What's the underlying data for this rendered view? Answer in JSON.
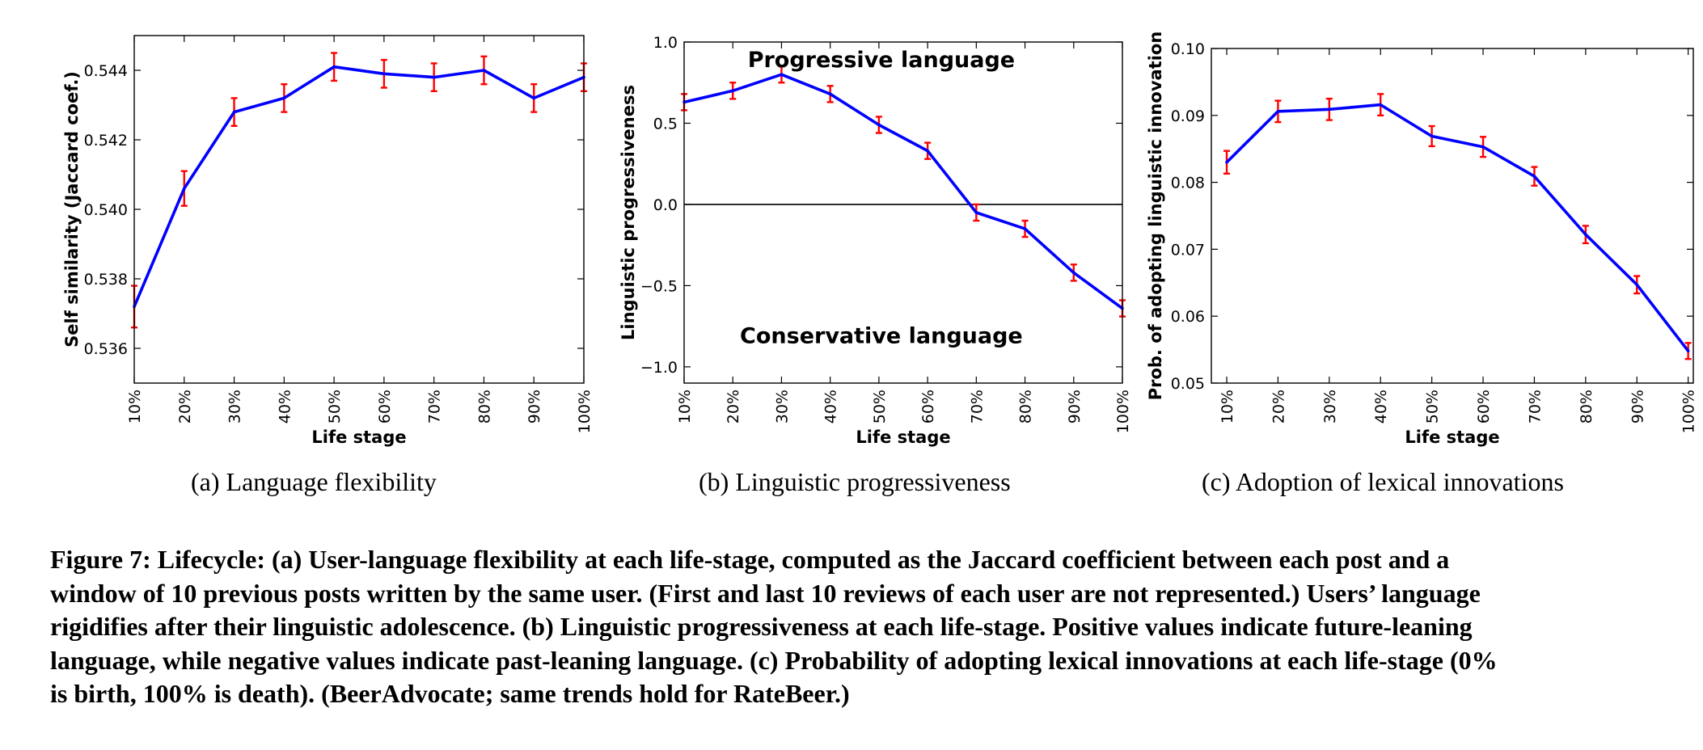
{
  "figure_caption_lines": [
    "Figure 7: Lifecycle: (a) User-language flexibility at each life-stage, computed as the Jaccard coefficient between each post and a",
    "window of 10 previous posts written by the same user. (First and last 10 reviews of each user are not represented.) Users’ language",
    "rigidifies after their linguistic adolescence. (b) Linguistic progressiveness at each life-stage. Positive values indicate future-leaning",
    "language, while negative values indicate past-leaning language. (c) Probability of adopting lexical innovations at each life-stage (0%",
    "is birth, 100% is death). (BeerAdvocate; same trends hold for RateBeer.)"
  ],
  "colors": {
    "line": "#0000ff",
    "error_bar": "#ff0000",
    "axis": "#000000",
    "zero_line": "#000000"
  },
  "chart_data": [
    {
      "type": "line",
      "subcaption": "(a) Language flexibility",
      "title": "",
      "xlabel": "Life stage",
      "ylabel": "Self similarity (Jaccard coef.)",
      "categories": [
        "10%",
        "20%",
        "30%",
        "40%",
        "50%",
        "60%",
        "70%",
        "80%",
        "90%",
        "100%"
      ],
      "values": [
        0.5372,
        0.5406,
        0.5428,
        0.5432,
        0.5441,
        0.5439,
        0.5438,
        0.544,
        0.5432,
        0.5438
      ],
      "error": [
        0.0006,
        0.0005,
        0.0004,
        0.0004,
        0.0004,
        0.0004,
        0.0004,
        0.0004,
        0.0004,
        0.0004
      ],
      "ylim": [
        0.535,
        0.545
      ],
      "yticks": [
        0.536,
        0.538,
        0.54,
        0.542,
        0.544
      ],
      "ytick_labels": [
        "0.536",
        "0.538",
        "0.540",
        "0.542",
        "0.544"
      ],
      "x_position": "edges",
      "annotations": [],
      "zero_line": false,
      "grid": false,
      "legend": "none"
    },
    {
      "type": "line",
      "subcaption": "(b) Linguistic progressiveness",
      "title": "",
      "xlabel": "Life stage",
      "ylabel": "Linguistic progressiveness",
      "categories": [
        "10%",
        "20%",
        "30%",
        "40%",
        "50%",
        "60%",
        "70%",
        "80%",
        "90%",
        "100%"
      ],
      "values": [
        0.63,
        0.7,
        0.8,
        0.68,
        0.49,
        0.33,
        -0.05,
        -0.15,
        -0.42,
        -0.64
      ],
      "error": [
        0.05,
        0.05,
        0.05,
        0.05,
        0.05,
        0.05,
        0.05,
        0.05,
        0.05,
        0.05
      ],
      "ylim": [
        -1.1,
        1.0
      ],
      "yticks": [
        -1.0,
        -0.5,
        0.0,
        0.5,
        1.0
      ],
      "ytick_labels": [
        "−1.0",
        "−0.5",
        "0.0",
        "0.5",
        "1.0"
      ],
      "x_position": "edges",
      "annotations": [
        {
          "text": "Progressive language",
          "x": 0.45,
          "y": 0.89
        },
        {
          "text": "Conservative language",
          "x": 0.45,
          "y": -0.81
        }
      ],
      "zero_line": true,
      "grid": false,
      "legend": "none"
    },
    {
      "type": "line",
      "subcaption": "(c) Adoption of lexical innovations",
      "title": "",
      "xlabel": "Life stage",
      "ylabel": "Prob. of adopting linguistic innovation",
      "categories": [
        "10%",
        "20%",
        "30%",
        "40%",
        "50%",
        "60%",
        "70%",
        "80%",
        "90%",
        "100%"
      ],
      "values": [
        0.083,
        0.0906,
        0.0909,
        0.0916,
        0.0869,
        0.0853,
        0.0809,
        0.0722,
        0.0647,
        0.0548
      ],
      "error": [
        0.0017,
        0.0016,
        0.0016,
        0.0016,
        0.0015,
        0.0015,
        0.0014,
        0.0013,
        0.0013,
        0.0012
      ],
      "ylim": [
        0.05,
        0.1
      ],
      "yticks": [
        0.05,
        0.06,
        0.07,
        0.08,
        0.09,
        0.1
      ],
      "ytick_labels": [
        "0.05",
        "0.06",
        "0.07",
        "0.08",
        "0.09",
        "0.10"
      ],
      "x_position": "padded",
      "annotations": [],
      "zero_line": false,
      "grid": false,
      "legend": "none"
    }
  ]
}
